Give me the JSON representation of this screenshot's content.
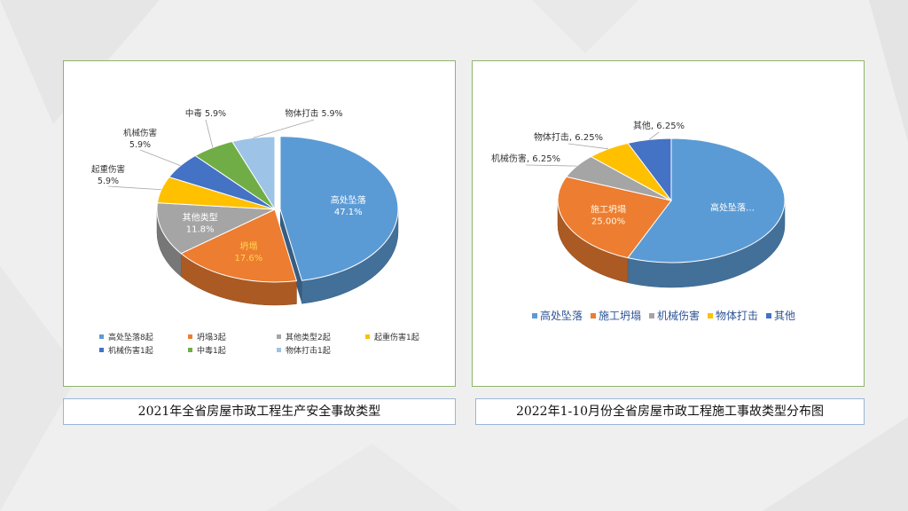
{
  "chart_data": [
    {
      "type": "pie",
      "caption": "2021年全省房屋市政工程生产安全事故类型",
      "slices": [
        {
          "name": "高处坠落",
          "value": 47.1,
          "label": "47.1%",
          "legend": "高处坠落8起",
          "color": "#5b9bd5"
        },
        {
          "name": "坍塌",
          "value": 17.6,
          "label": "17.6%",
          "legend": "坍塌3起",
          "color": "#ed7d31"
        },
        {
          "name": "其他类型",
          "value": 11.8,
          "label": "11.8%",
          "legend": "其他类型2起",
          "color": "#a5a5a5"
        },
        {
          "name": "起重伤害",
          "value": 5.9,
          "label": "5.9%",
          "legend": "起重伤害1起",
          "color": "#ffc000"
        },
        {
          "name": "机械伤害",
          "value": 5.9,
          "label": "5.9%",
          "legend": "机械伤害1起",
          "color": "#4472c4"
        },
        {
          "name": "中毒",
          "value": 5.9,
          "label": "5.9%",
          "legend": "中毒1起",
          "color": "#70ad47"
        },
        {
          "name": "物体打击",
          "value": 5.9,
          "label": "5.9%",
          "legend": "物体打击1起",
          "color": "#9dc3e6"
        }
      ],
      "legend_position": "bottom"
    },
    {
      "type": "pie",
      "caption": "2022年1-10月份全省房屋市政工程施工事故类型分布图",
      "slices": [
        {
          "name": "高处坠落",
          "value": 56.25,
          "label": "高处坠落…",
          "legend": "高处坠落",
          "color": "#5b9bd5"
        },
        {
          "name": "施工坍塌",
          "value": 25.0,
          "label": "25.00%",
          "legend": "施工坍塌",
          "color": "#ed7d31"
        },
        {
          "name": "机械伤害",
          "value": 6.25,
          "label": "6.25%",
          "legend": "机械伤害",
          "color": "#a5a5a5"
        },
        {
          "name": "物体打击",
          "value": 6.25,
          "label": "6.25%",
          "legend": "物体打击",
          "color": "#ffc000"
        },
        {
          "name": "其他",
          "value": 6.25,
          "label": "6.25%",
          "legend": "其他",
          "color": "#4472c4"
        }
      ],
      "legend_position": "bottom"
    }
  ]
}
